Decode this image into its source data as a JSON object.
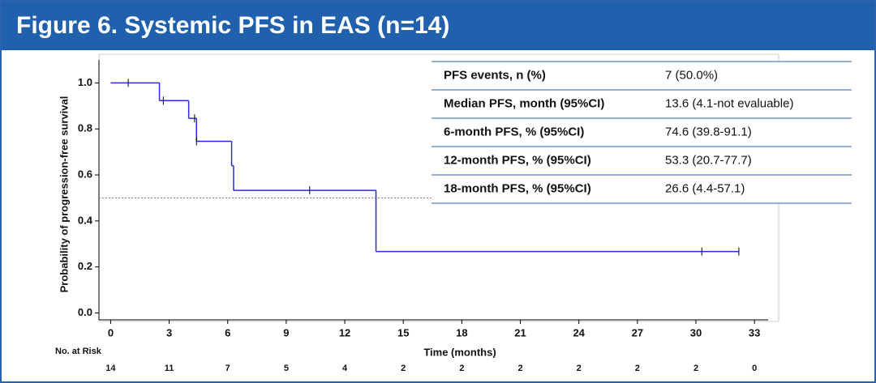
{
  "header": {
    "title": "Figure 6. Systemic PFS in EAS (n=14)"
  },
  "chart_data": {
    "type": "km",
    "x_label": "Time (months)",
    "y_label": "Probability of progression-free survival",
    "x": [
      0,
      2.5,
      4.0,
      4.4,
      6.2,
      6.3,
      13.6,
      13.6,
      32.2
    ],
    "values": [
      1.0,
      0.923,
      0.846,
      0.746,
      0.64,
      0.533,
      0.4,
      0.267,
      0.267
    ],
    "censor_x": [
      0.9,
      2.7,
      4.3,
      4.4,
      10.2,
      30.3,
      32.2
    ],
    "censor_values": [
      1.0,
      0.923,
      0.846,
      0.746,
      0.533,
      0.267,
      0.267
    ],
    "color": "#2a2ae0",
    "reference_y": 0.5,
    "xlim": [
      -0.6,
      33.7
    ],
    "ylim": [
      -0.03,
      1.1
    ],
    "xticks": [
      0,
      3,
      6,
      9,
      12,
      15,
      18,
      21,
      24,
      27,
      30,
      33
    ],
    "yticks": [
      {
        "value": 0,
        "label": "0.0"
      },
      {
        "value": 0.2,
        "label": "0.2"
      },
      {
        "value": 0.4,
        "label": "0.4"
      },
      {
        "value": 0.6,
        "label": "0.6"
      },
      {
        "value": 0.8,
        "label": "0.8"
      },
      {
        "value": 1,
        "label": "1.0"
      }
    ],
    "risk_table": {
      "label": "No. at Risk",
      "counts": [
        14,
        11,
        7,
        5,
        4,
        2,
        2,
        2,
        2,
        2,
        2,
        0
      ]
    }
  },
  "table": {
    "rows": [
      [
        "PFS events, n (%)",
        "7 (50.0%)"
      ],
      [
        "Median PFS, month (95%CI)",
        "13.6 (4.1-not evaluable)"
      ],
      [
        "6-month PFS, % (95%CI)",
        "74.6 (39.8-91.1)"
      ],
      [
        "12-month PFS, % (95%CI)",
        "53.3 (20.7-77.7)"
      ],
      [
        "18-month PFS, % (95%CI)",
        "26.6 (4.4-57.1)"
      ]
    ]
  }
}
